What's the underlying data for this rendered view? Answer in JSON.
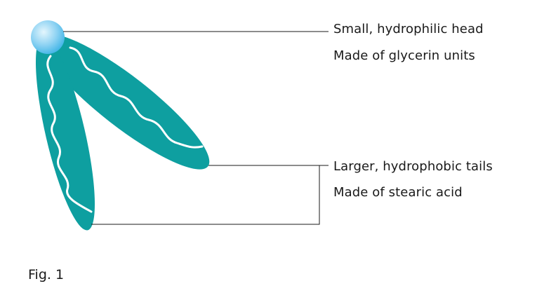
{
  "colors": {
    "tail_fill": "#0e9fa0",
    "wave_stroke": "#ffffff",
    "head_gradient_inner": "#e4f6fd",
    "head_gradient_mid": "#8fd3f3",
    "head_gradient_outer": "#3fb4e6",
    "leader_line": "#1a1a1a",
    "text": "#1a1a1a"
  },
  "labels": {
    "head_title": "Small, hydrophilic head",
    "head_subtitle": "Made of glycerin units",
    "tails_title": "Larger, hydrophobic tails",
    "tails_subtitle": "Made of stearic acid"
  },
  "caption": "Fig. 1"
}
